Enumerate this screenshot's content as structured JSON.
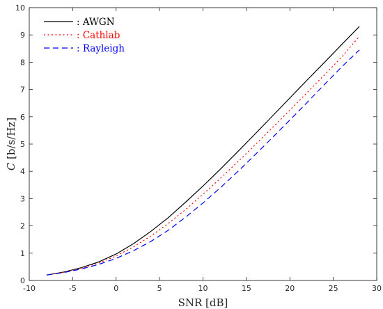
{
  "chart_data": {
    "type": "line",
    "xlabel": "SNR [dB]",
    "ylabel_var": "C",
    "ylabel_unit": " [b/s/Hz]",
    "xlim": [
      -10,
      30
    ],
    "ylim": [
      0,
      10
    ],
    "xticks": [
      -10,
      -5,
      0,
      5,
      10,
      15,
      20,
      25,
      30
    ],
    "yticks": [
      0,
      1,
      2,
      3,
      4,
      5,
      6,
      7,
      8,
      9,
      10
    ],
    "grid": false,
    "legend_position": "top-left",
    "x": [
      -8,
      -6,
      -4,
      -2,
      0,
      2,
      4,
      6,
      8,
      10,
      12,
      14,
      16,
      18,
      20,
      22,
      24,
      26,
      28
    ],
    "series": [
      {
        "name": "AWGN",
        "legend_label": ": AWGN",
        "color": "#000000",
        "dash": "solid",
        "values": [
          0.2,
          0.31,
          0.47,
          0.68,
          0.97,
          1.35,
          1.8,
          2.3,
          2.87,
          3.46,
          4.08,
          4.72,
          5.37,
          6.03,
          6.69,
          7.35,
          8.0,
          8.66,
          9.31
        ]
      },
      {
        "name": "Cathlab",
        "legend_label": ": Cathlab",
        "color": "#ff0000",
        "dash": "dotted",
        "values": [
          0.2,
          0.3,
          0.45,
          0.64,
          0.9,
          1.23,
          1.63,
          2.09,
          2.6,
          3.16,
          3.74,
          4.35,
          4.97,
          5.6,
          6.24,
          6.89,
          7.54,
          8.2,
          8.95
        ]
      },
      {
        "name": "Rayleigh",
        "legend_label": ": Rayleigh",
        "color": "#0000ff",
        "dash": "dashed",
        "values": [
          0.2,
          0.29,
          0.42,
          0.59,
          0.81,
          1.09,
          1.43,
          1.84,
          2.32,
          2.84,
          3.4,
          3.99,
          4.61,
          5.24,
          5.88,
          6.53,
          7.19,
          7.84,
          8.45
        ]
      }
    ]
  }
}
